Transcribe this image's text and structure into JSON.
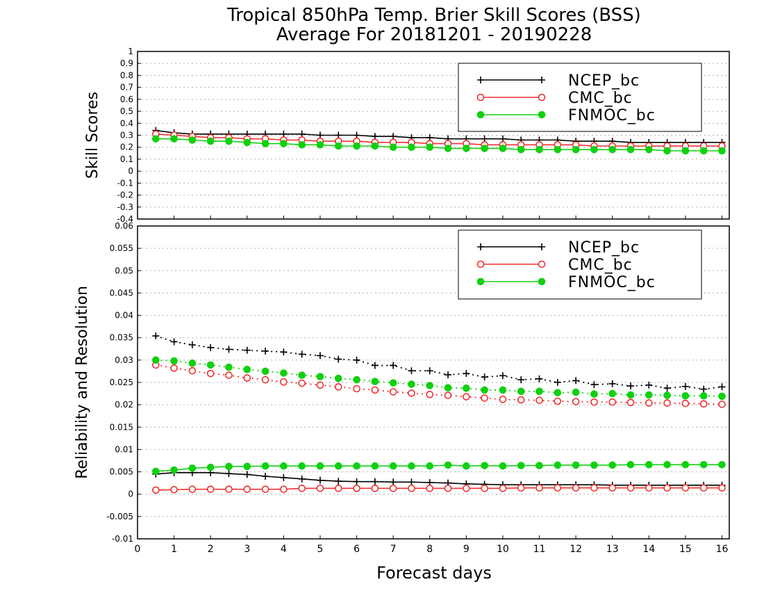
{
  "figure": {
    "title_line1": "Tropical 850hPa Temp. Brier Skill Scores (BSS)",
    "title_line2": "Average For 20181201 - 20190228",
    "xlabel": "Forecast days"
  },
  "colors": {
    "ncep": "#000000",
    "cmc": "#ee3030",
    "fnmoc": "#10d010",
    "grid": "#b0b0b0"
  },
  "chart_data": [
    {
      "type": "line",
      "panel": "top",
      "ylabel": "Skill Scores",
      "xlim": [
        0,
        16.2
      ],
      "ylim": [
        -0.4,
        1.0
      ],
      "yticks": [
        "-0.4",
        "-0.3",
        "-0.2",
        "-0.1",
        "0",
        "0.1",
        "0.2",
        "0.3",
        "0.4",
        "0.5",
        "0.6",
        "0.7",
        "0.8",
        "0.9",
        "1"
      ],
      "ytick_values": [
        -0.4,
        -0.3,
        -0.2,
        -0.1,
        0,
        0.1,
        0.2,
        0.3,
        0.4,
        0.5,
        0.6,
        0.7,
        0.8,
        0.9,
        1.0
      ],
      "xticks": [
        "0",
        "1",
        "2",
        "3",
        "4",
        "5",
        "6",
        "7",
        "8",
        "9",
        "10",
        "11",
        "12",
        "13",
        "14",
        "15",
        "16"
      ],
      "grid": true,
      "legend_position": "top-right",
      "x": [
        0.5,
        1,
        1.5,
        2,
        2.5,
        3,
        3.5,
        4,
        4.5,
        5,
        5.5,
        6,
        6.5,
        7,
        7.5,
        8,
        8.5,
        9,
        9.5,
        10,
        10.5,
        11,
        11.5,
        12,
        12.5,
        13,
        13.5,
        14,
        14.5,
        15,
        15.5,
        16
      ],
      "series": [
        {
          "name": "NCEP_bc",
          "key": "ncep",
          "marker": "plus",
          "linestyle": "solid",
          "values": [
            0.34,
            0.32,
            0.31,
            0.31,
            0.31,
            0.31,
            0.31,
            0.31,
            0.31,
            0.3,
            0.3,
            0.3,
            0.29,
            0.29,
            0.28,
            0.28,
            0.27,
            0.27,
            0.27,
            0.27,
            0.26,
            0.26,
            0.26,
            0.25,
            0.25,
            0.25,
            0.24,
            0.24,
            0.24,
            0.24,
            0.24,
            0.24
          ]
        },
        {
          "name": "CMC_bc",
          "key": "cmc",
          "marker": "open-circle",
          "linestyle": "solid",
          "values": [
            0.31,
            0.3,
            0.29,
            0.28,
            0.28,
            0.27,
            0.27,
            0.26,
            0.26,
            0.25,
            0.25,
            0.25,
            0.24,
            0.24,
            0.24,
            0.23,
            0.23,
            0.23,
            0.22,
            0.22,
            0.22,
            0.22,
            0.22,
            0.22,
            0.21,
            0.21,
            0.21,
            0.21,
            0.21,
            0.21,
            0.21,
            0.21
          ]
        },
        {
          "name": "FNMOC_bc",
          "key": "fnmoc",
          "marker": "filled-circle",
          "linestyle": "solid",
          "values": [
            0.27,
            0.27,
            0.26,
            0.25,
            0.25,
            0.24,
            0.23,
            0.23,
            0.22,
            0.22,
            0.21,
            0.21,
            0.21,
            0.2,
            0.2,
            0.2,
            0.19,
            0.19,
            0.19,
            0.19,
            0.18,
            0.18,
            0.18,
            0.18,
            0.18,
            0.18,
            0.18,
            0.18,
            0.17,
            0.17,
            0.17,
            0.17
          ]
        }
      ]
    },
    {
      "type": "line",
      "panel": "bottom",
      "ylabel": "Reliability and Resolution",
      "xlim": [
        0,
        16.2
      ],
      "ylim": [
        -0.01,
        0.06
      ],
      "yticks": [
        "-0.01",
        "-0.005",
        "0",
        "0.005",
        "0.01",
        "0.015",
        "0.02",
        "0.025",
        "0.03",
        "0.035",
        "0.04",
        "0.045",
        "0.05",
        "0.055",
        "0.06"
      ],
      "ytick_values": [
        -0.01,
        -0.005,
        0,
        0.005,
        0.01,
        0.015,
        0.02,
        0.025,
        0.03,
        0.035,
        0.04,
        0.045,
        0.05,
        0.055,
        0.06
      ],
      "xticks": [
        "0",
        "1",
        "2",
        "3",
        "4",
        "5",
        "6",
        "7",
        "8",
        "9",
        "10",
        "11",
        "12",
        "13",
        "14",
        "15",
        "16"
      ],
      "grid": true,
      "legend_position": "top-right",
      "x": [
        0.5,
        1,
        1.5,
        2,
        2.5,
        3,
        3.5,
        4,
        4.5,
        5,
        5.5,
        6,
        6.5,
        7,
        7.5,
        8,
        8.5,
        9,
        9.5,
        10,
        10.5,
        11,
        11.5,
        12,
        12.5,
        13,
        13.5,
        14,
        14.5,
        15,
        15.5,
        16
      ],
      "series": [
        {
          "name": "NCEP_bc",
          "key": "ncep",
          "marker": "plus",
          "linestyle": "dotted",
          "metric": "reliability",
          "values": [
            0.0354,
            0.0341,
            0.0334,
            0.0328,
            0.0324,
            0.0322,
            0.032,
            0.0318,
            0.0313,
            0.031,
            0.0302,
            0.03,
            0.0288,
            0.0288,
            0.0276,
            0.0276,
            0.0267,
            0.027,
            0.0262,
            0.0265,
            0.0256,
            0.0258,
            0.025,
            0.0254,
            0.0245,
            0.0247,
            0.0242,
            0.0244,
            0.0237,
            0.0241,
            0.0235,
            0.024
          ]
        },
        {
          "name": "CMC_bc",
          "key": "cmc",
          "marker": "open-circle",
          "linestyle": "dotted",
          "metric": "reliability",
          "values": [
            0.0289,
            0.0282,
            0.0276,
            0.027,
            0.0266,
            0.026,
            0.0256,
            0.0251,
            0.0248,
            0.0244,
            0.024,
            0.0236,
            0.0233,
            0.0229,
            0.0226,
            0.0223,
            0.0221,
            0.0218,
            0.0215,
            0.0212,
            0.0211,
            0.021,
            0.0208,
            0.0207,
            0.0206,
            0.0206,
            0.0205,
            0.0204,
            0.0204,
            0.0203,
            0.0202,
            0.0201
          ]
        },
        {
          "name": "FNMOC_bc",
          "key": "fnmoc",
          "marker": "filled-circle",
          "linestyle": "dotted",
          "metric": "reliability",
          "values": [
            0.03,
            0.0298,
            0.0293,
            0.0289,
            0.0284,
            0.0279,
            0.0275,
            0.0271,
            0.0266,
            0.0263,
            0.0259,
            0.0256,
            0.0252,
            0.0249,
            0.0246,
            0.0243,
            0.0238,
            0.0237,
            0.0233,
            0.0233,
            0.023,
            0.023,
            0.0227,
            0.0228,
            0.0224,
            0.0225,
            0.0222,
            0.0222,
            0.0221,
            0.022,
            0.022,
            0.0219
          ]
        },
        {
          "name": "NCEP_bc",
          "key": "ncep",
          "marker": "plus",
          "linestyle": "solid",
          "metric": "resolution",
          "values": [
            0.0045,
            0.0048,
            0.0048,
            0.0048,
            0.0046,
            0.0044,
            0.004,
            0.0037,
            0.0034,
            0.0031,
            0.0029,
            0.0028,
            0.0028,
            0.0027,
            0.0027,
            0.0026,
            0.0025,
            0.0023,
            0.0022,
            0.0021,
            0.0021,
            0.0021,
            0.0021,
            0.0021,
            0.0021,
            0.002,
            0.002,
            0.002,
            0.002,
            0.002,
            0.002,
            0.002
          ]
        },
        {
          "name": "CMC_bc",
          "key": "cmc",
          "marker": "open-circle",
          "linestyle": "solid",
          "metric": "resolution",
          "values": [
            0.0009,
            0.001,
            0.0011,
            0.0011,
            0.0011,
            0.0011,
            0.0011,
            0.0011,
            0.0013,
            0.0013,
            0.0013,
            0.0013,
            0.0013,
            0.0013,
            0.0013,
            0.0013,
            0.0013,
            0.0013,
            0.0013,
            0.0013,
            0.0014,
            0.0014,
            0.0014,
            0.0014,
            0.0014,
            0.0014,
            0.0014,
            0.0014,
            0.0014,
            0.0014,
            0.0014,
            0.0014
          ]
        },
        {
          "name": "FNMOC_bc",
          "key": "fnmoc",
          "marker": "filled-circle",
          "linestyle": "solid",
          "metric": "resolution",
          "values": [
            0.0051,
            0.0054,
            0.0058,
            0.006,
            0.0062,
            0.0062,
            0.0063,
            0.0063,
            0.0063,
            0.0063,
            0.0063,
            0.0063,
            0.0063,
            0.0063,
            0.0063,
            0.0063,
            0.0065,
            0.0063,
            0.0064,
            0.0063,
            0.0064,
            0.0064,
            0.0065,
            0.0065,
            0.0065,
            0.0065,
            0.0066,
            0.0066,
            0.0066,
            0.0066,
            0.0066,
            0.0066
          ]
        }
      ]
    }
  ]
}
